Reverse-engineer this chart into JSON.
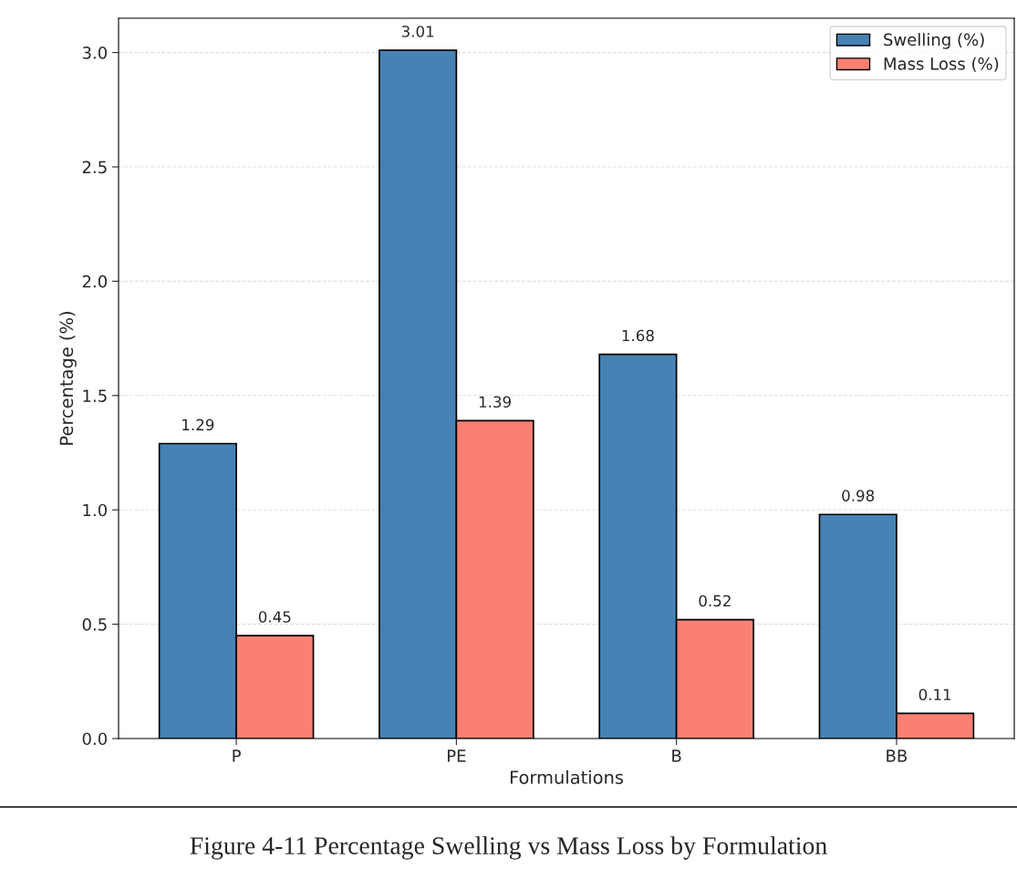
{
  "chart_data": {
    "type": "bar",
    "xlabel": "Formulations",
    "ylabel": "Percentage (%)",
    "categories": [
      "P",
      "PE",
      "B",
      "BB"
    ],
    "series": [
      {
        "name": "Swelling (%)",
        "color": "#4682b4",
        "values": [
          1.29,
          3.01,
          1.68,
          0.98
        ]
      },
      {
        "name": "Mass Loss (%)",
        "color": "#fa8072",
        "values": [
          0.45,
          1.39,
          0.52,
          0.11
        ]
      }
    ],
    "ylim": [
      0,
      3.15
    ],
    "yticks": [
      {
        "value": 0,
        "label": "0.0"
      },
      0.5,
      {
        "value": 1,
        "label": "1.0"
      },
      1.5,
      {
        "value": 2,
        "label": "2.0"
      },
      2.5,
      {
        "value": 3,
        "label": "3.0"
      }
    ],
    "grid": "y",
    "legend": "top right",
    "data_labels": true,
    "annotations": [
      "Figure 4-11 Percentage Swelling vs Mass Loss by Formulation"
    ]
  }
}
